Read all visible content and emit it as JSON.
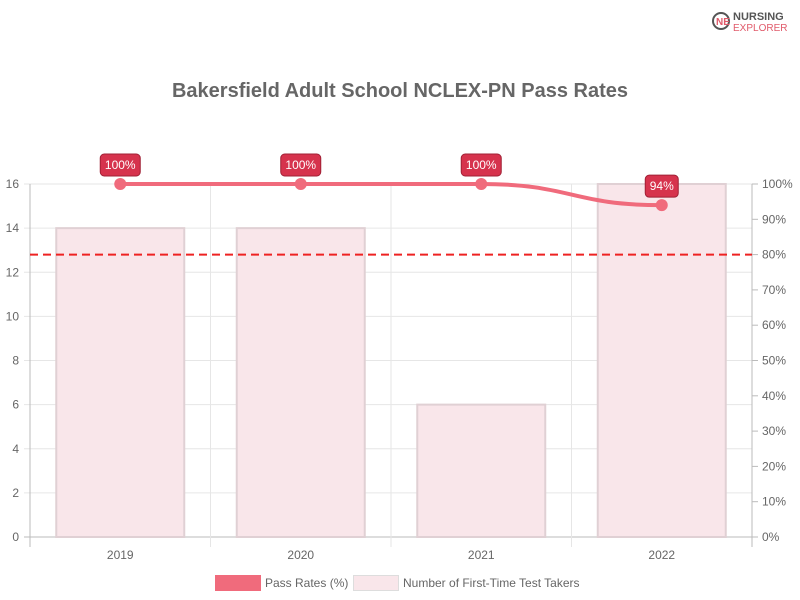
{
  "logo": {
    "line1": "NURSING",
    "line2": "EXPLORER"
  },
  "chart_data": {
    "type": "bar",
    "title": "Bakersfield Adult School NCLEX-PN Pass Rates",
    "categories": [
      "2019",
      "2020",
      "2021",
      "2022"
    ],
    "series": [
      {
        "name": "Pass Rates (%)",
        "type": "line",
        "axis": "right",
        "values": [
          100,
          100,
          100,
          94
        ],
        "labels": [
          "100%",
          "100%",
          "100%",
          "94%"
        ],
        "color": "#f06b7c"
      },
      {
        "name": "Number of First-Time Test Takers",
        "type": "bar",
        "axis": "left",
        "values": [
          14,
          14,
          6,
          16
        ],
        "color": "#f9e6ea",
        "border": "#e0d0d4"
      }
    ],
    "left_axis": {
      "range": [
        0,
        16
      ],
      "ticks": [
        "0",
        "2",
        "4",
        "6",
        "8",
        "10",
        "12",
        "14",
        "16"
      ]
    },
    "right_axis": {
      "range": [
        0,
        100
      ],
      "ticks": [
        "0%",
        "10%",
        "20%",
        "30%",
        "40%",
        "50%",
        "60%",
        "70%",
        "80%",
        "90%",
        "100%"
      ]
    },
    "reference_line": {
      "value": 80,
      "axis": "right",
      "style": "dashed",
      "color": "#ee2222"
    },
    "grid": true,
    "legend": "bottom"
  }
}
